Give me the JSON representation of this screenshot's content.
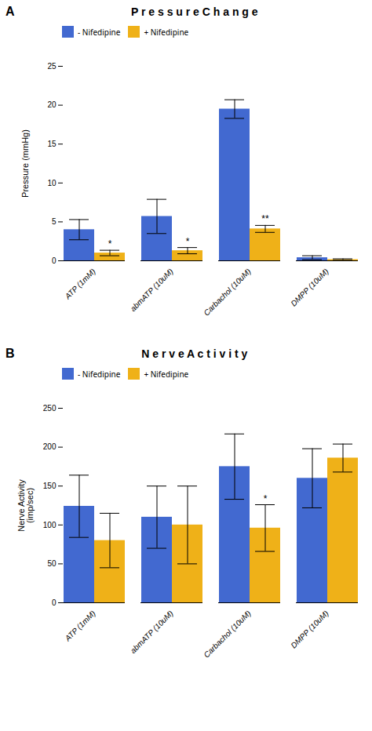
{
  "chart_data": [
    {
      "type": "bar",
      "panel_label": "A",
      "title": "P r e s s u r e   C h a n g e",
      "ylabel": "Pressure (mmHg)",
      "categories": [
        "ATP (1mM)",
        "abmATP (10uM)",
        "Carbachol (10uM)",
        "DMPP (10uM)"
      ],
      "series": [
        {
          "name": "- Nifedipine",
          "values": [
            4.0,
            5.7,
            19.5,
            0.4
          ],
          "errors": [
            1.3,
            2.2,
            1.2,
            0.25
          ]
        },
        {
          "name": "+ Nifedipine",
          "values": [
            1.0,
            1.3,
            4.1,
            0.15
          ],
          "errors": [
            0.35,
            0.4,
            0.45,
            0.1
          ]
        }
      ],
      "annotations": [
        {
          "category": "ATP (1mM)",
          "series": "+ Nifedipine",
          "text": "*"
        },
        {
          "category": "abmATP (10uM)",
          "series": "+ Nifedipine",
          "text": "*"
        },
        {
          "category": "Carbachol (10uM)",
          "series": "+ Nifedipine",
          "text": "**"
        }
      ],
      "ylim": [
        0,
        25
      ],
      "yticks": [
        0,
        5,
        10,
        15,
        20,
        25
      ],
      "grid": false,
      "legend": "upper left"
    },
    {
      "type": "bar",
      "panel_label": "B",
      "title": "N e r v e   A c t i v i t y",
      "ylabel": "Nerve Activity\n(imp/sec)",
      "categories": [
        "ATP (1mM)",
        "abmATP (10uM)",
        "Carbachol (10uM)",
        "DMPP (10uM)"
      ],
      "series": [
        {
          "name": "- Nifedipine",
          "values": [
            124,
            110,
            175,
            160
          ],
          "errors": [
            40,
            40,
            42,
            38
          ]
        },
        {
          "name": "+ Nifedipine",
          "values": [
            80,
            100,
            96,
            186
          ],
          "errors": [
            35,
            50,
            30,
            18
          ]
        }
      ],
      "annotations": [
        {
          "category": "Carbachol (10uM)",
          "series": "+ Nifedipine",
          "text": "*"
        }
      ],
      "ylim": [
        0,
        250
      ],
      "yticks": [
        0,
        50,
        100,
        150,
        200,
        250
      ],
      "grid": false,
      "legend": "upper left"
    }
  ]
}
